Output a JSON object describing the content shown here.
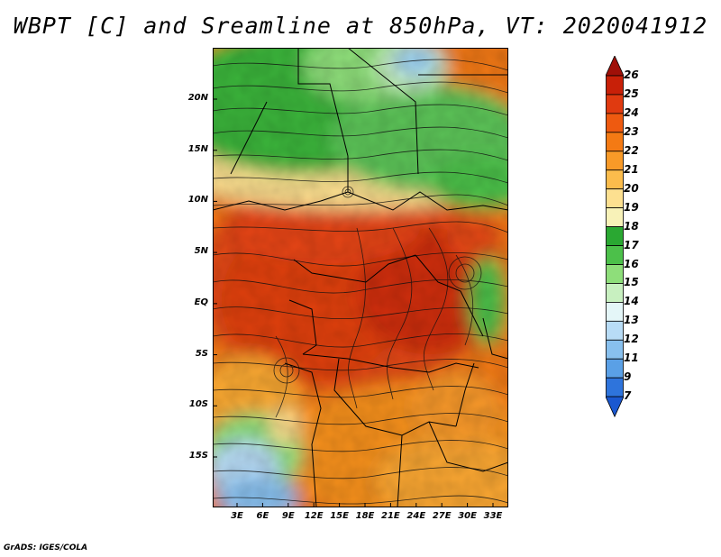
{
  "title": "WBPT [C] and Sreamline at 850hPa, VT: 2020041912",
  "credit": "GrADS: IGES/COLA",
  "map": {
    "variable": "Wet-bulb potential temperature",
    "units": "C",
    "level": "850hPa",
    "valid_time": "2020041912",
    "lat_labels": [
      "20N",
      "15N",
      "10N",
      "5N",
      "EQ",
      "5S",
      "10S",
      "15S"
    ],
    "lat_values": [
      20,
      15,
      10,
      5,
      0,
      -5,
      -10,
      -15
    ],
    "lon_labels": [
      "3E",
      "6E",
      "9E",
      "12E",
      "15E",
      "18E",
      "21E",
      "24E",
      "27E",
      "30E",
      "33E"
    ],
    "lon_values": [
      3,
      6,
      9,
      12,
      15,
      18,
      21,
      24,
      27,
      30,
      33
    ]
  },
  "colorbar": {
    "labels": [
      "26",
      "25",
      "24",
      "23",
      "22",
      "21",
      "20",
      "19",
      "18",
      "17",
      "16",
      "15",
      "14",
      "13",
      "12",
      "11",
      "9",
      "7"
    ],
    "colors": [
      "#a01008",
      "#c82008",
      "#e03a10",
      "#ee5a10",
      "#f47a14",
      "#f89a28",
      "#fbbc4c",
      "#fde090",
      "#f8f2b8",
      "#2aa832",
      "#4cc04a",
      "#8ede7a",
      "#c8f0c0",
      "#e4f6f8",
      "#b8dcf6",
      "#88c0ee",
      "#5aa0e6",
      "#2e74dc",
      "#1a58d0"
    ]
  }
}
